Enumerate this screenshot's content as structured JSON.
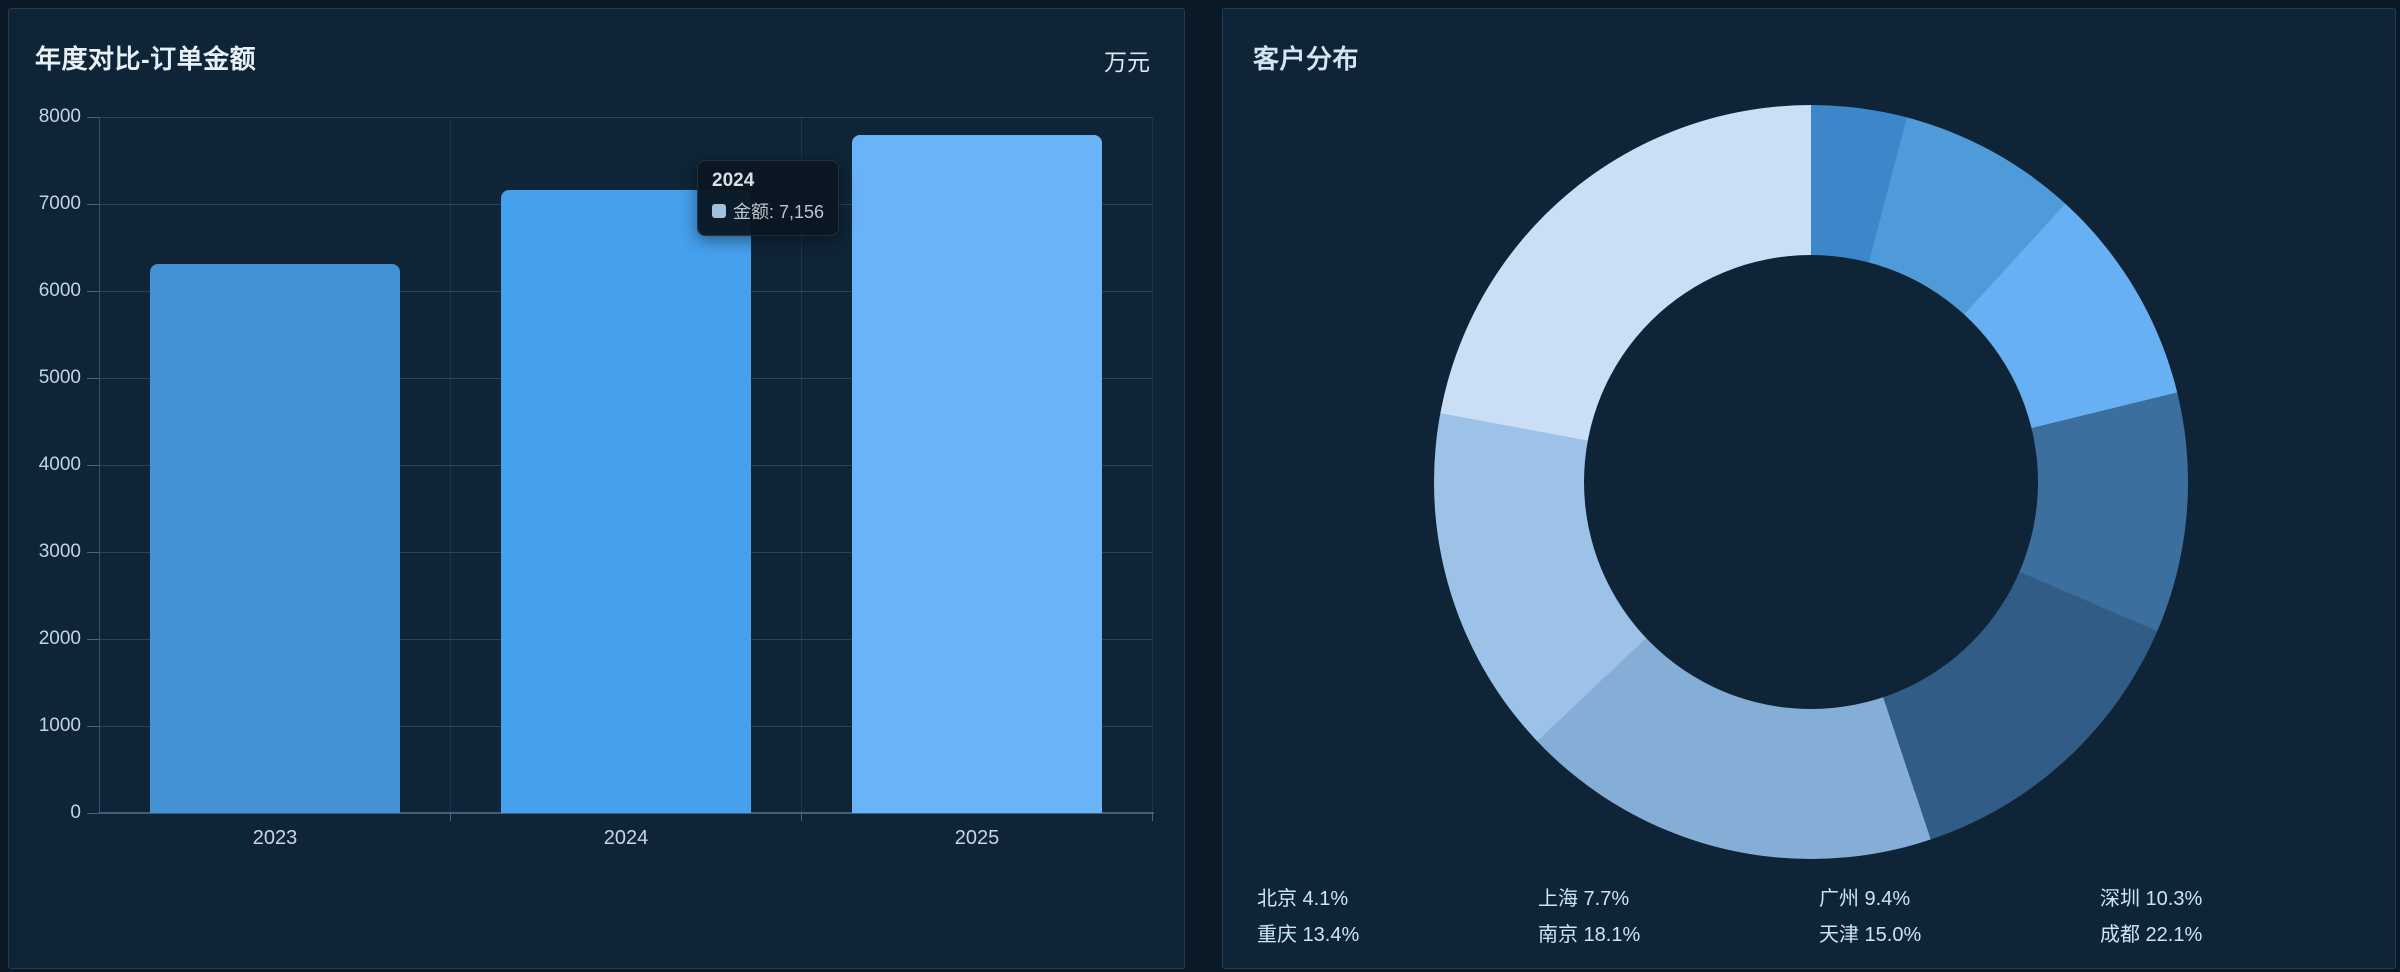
{
  "left_panel": {
    "title": "年度对比-订单金额",
    "unit": "万元",
    "tooltip": {
      "title": "2024",
      "series_label": "金额",
      "value": "7,156",
      "text": "金额: 7,156",
      "marker_color": "#a2c0db"
    }
  },
  "right_panel": {
    "title": "客户分布"
  },
  "chart_data": [
    {
      "type": "bar",
      "title": "年度对比-订单金额",
      "ylabel_unit": "万元",
      "categories": [
        "2023",
        "2024",
        "2025"
      ],
      "values": [
        6310,
        7156,
        7790
      ],
      "bar_colors": [
        "#4392d4",
        "#45a0ed",
        "#69b4f6"
      ],
      "ylim": [
        0,
        8000
      ],
      "y_ticks": [
        0,
        1000,
        2000,
        3000,
        4000,
        5000,
        6000,
        7000,
        8000
      ],
      "grid": "horizontal lines at every 1000, faint vertical category split lines",
      "tooltip_shown_for": "2024"
    },
    {
      "type": "pie",
      "title": "客户分布",
      "donut": true,
      "start_angle_deg": 0,
      "direction": "clockwise",
      "labels": [
        "北京",
        "上海",
        "广州",
        "深圳",
        "重庆",
        "南京",
        "天津",
        "成都"
      ],
      "values": [
        4.1,
        7.7,
        9.4,
        10.3,
        13.4,
        18.1,
        15.0,
        22.1
      ],
      "colors": [
        "#3c87c9",
        "#4f9ad9",
        "#67b0f3",
        "#3d6f9e",
        "#305c86",
        "#84aed6",
        "#9dc2e8",
        "#cadef5"
      ],
      "legend_position": "bottom",
      "legend_format": "label value%"
    }
  ]
}
